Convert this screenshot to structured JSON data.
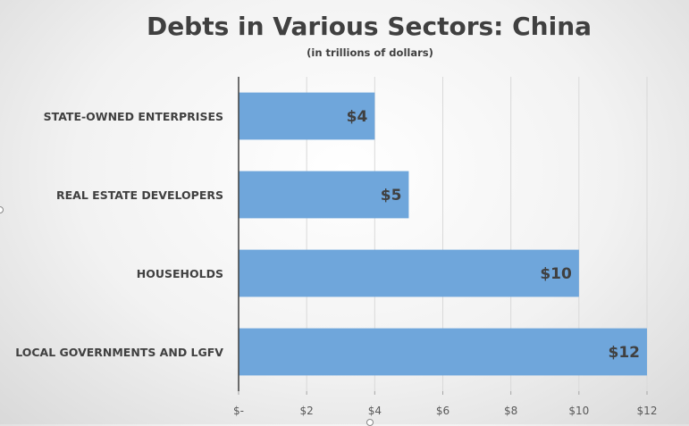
{
  "chart_data": {
    "type": "bar",
    "orientation": "horizontal",
    "title": "Debts in Various Sectors: China",
    "subtitle": "(in trillions of dollars)",
    "categories": [
      "STATE-OWNED ENTERPRISES",
      "REAL ESTATE DEVELOPERS",
      "HOUSEHOLDS",
      "LOCAL GOVERNMENTS AND LGFV"
    ],
    "values": [
      4,
      5,
      10,
      12
    ],
    "data_labels": [
      "$4",
      "$5",
      "$10",
      "$12"
    ],
    "xlim": [
      0,
      12
    ],
    "x_ticks": [
      0,
      2,
      4,
      6,
      8,
      10,
      12
    ],
    "x_tick_labels": [
      "$-",
      "$2",
      "$4",
      "$6",
      "$8",
      "$10",
      "$12"
    ],
    "grid": true,
    "legend": "none",
    "colors": {
      "bar": "#6fa6db",
      "grid": "#d9d9d9",
      "axis": "#404040",
      "text": "#404040"
    }
  }
}
